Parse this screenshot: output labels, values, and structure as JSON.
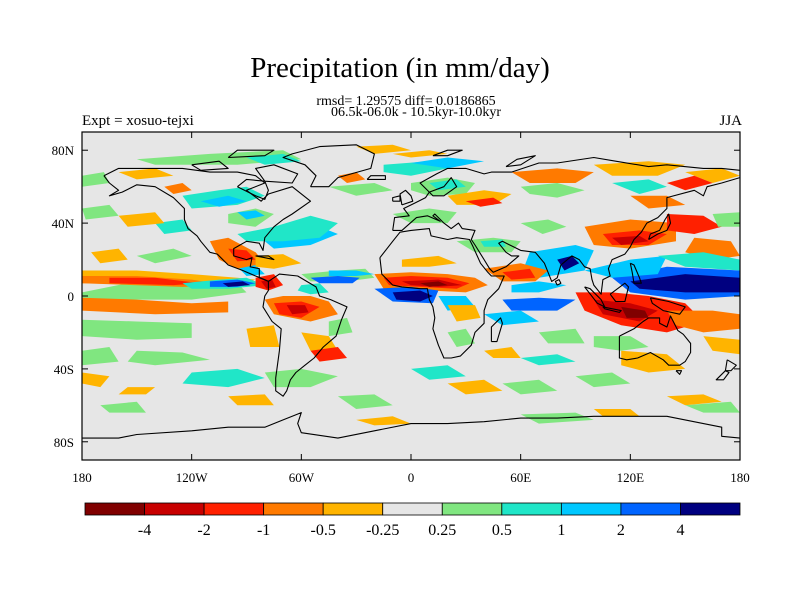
{
  "header": {
    "title": "Precipitation (in mm/day)",
    "stats_line1": "rmsd= 1.29575 diff= 0.0186865",
    "stats_line2": "06.5k-06.0k - 10.5kyr-10.0kyr",
    "left_label": "Expt = xosuo-tejxi",
    "right_label": "JJA"
  },
  "map": {
    "lon_range": [
      -180,
      180
    ],
    "lat_range": [
      -90,
      90
    ],
    "x_ticks": [
      {
        "lon": -180,
        "label": "180"
      },
      {
        "lon": -120,
        "label": "120W"
      },
      {
        "lon": -60,
        "label": "60W"
      },
      {
        "lon": 0,
        "label": "0"
      },
      {
        "lon": 60,
        "label": "60E"
      },
      {
        "lon": 120,
        "label": "120E"
      },
      {
        "lon": 180,
        "label": "180"
      }
    ],
    "y_ticks": [
      {
        "lat": 80,
        "label": "80N"
      },
      {
        "lat": 40,
        "label": "40N"
      },
      {
        "lat": 0,
        "label": "0"
      },
      {
        "lat": -40,
        "label": "40S"
      },
      {
        "lat": -80,
        "label": "80S"
      }
    ],
    "background_color": "#e6e6e6"
  },
  "colorbar": {
    "colors": [
      "#800000",
      "#c80000",
      "#ff2000",
      "#ff7a00",
      "#ffb400",
      "#e6e6e6",
      "#80e680",
      "#20e6c8",
      "#00c8ff",
      "#0064ff",
      "#000080"
    ],
    "labels": [
      "-4",
      "-2",
      "-1",
      "-0.5",
      "-0.25",
      "0.25",
      "0.5",
      "1",
      "2",
      "4"
    ]
  }
}
